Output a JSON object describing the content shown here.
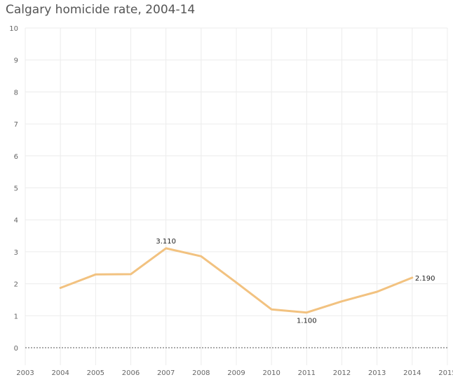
{
  "chart_data": {
    "type": "line",
    "title": "Calgary homicide rate, 2004-14",
    "xlabel": "",
    "ylabel": "",
    "xlim": [
      2003,
      2015
    ],
    "ylim": [
      0,
      10
    ],
    "x_ticks": [
      "2003",
      "2004",
      "2005",
      "2006",
      "2007",
      "2008",
      "2009",
      "2010",
      "2011",
      "2012",
      "2013",
      "2014",
      "2015"
    ],
    "y_ticks": [
      "0",
      "1",
      "2",
      "3",
      "4",
      "5",
      "6",
      "7",
      "8",
      "9",
      "10"
    ],
    "grid": true,
    "colors": {
      "line": "#f2c280",
      "grid": "#ececec",
      "baseline": "#555555"
    },
    "series": [
      {
        "x": [
          2004,
          2005,
          2006,
          2007,
          2008,
          2009,
          2010,
          2011,
          2012,
          2013,
          2014
        ],
        "values": [
          1.87,
          2.29,
          2.3,
          3.11,
          2.86,
          2.04,
          1.2,
          1.1,
          1.45,
          1.75,
          2.19
        ]
      }
    ],
    "data_labels": [
      {
        "x": 2007,
        "y": 3.11,
        "text": "3.110"
      },
      {
        "x": 2011,
        "y": 1.1,
        "text": "1.100"
      },
      {
        "x": 2014,
        "y": 2.19,
        "text": "2.190"
      }
    ]
  }
}
